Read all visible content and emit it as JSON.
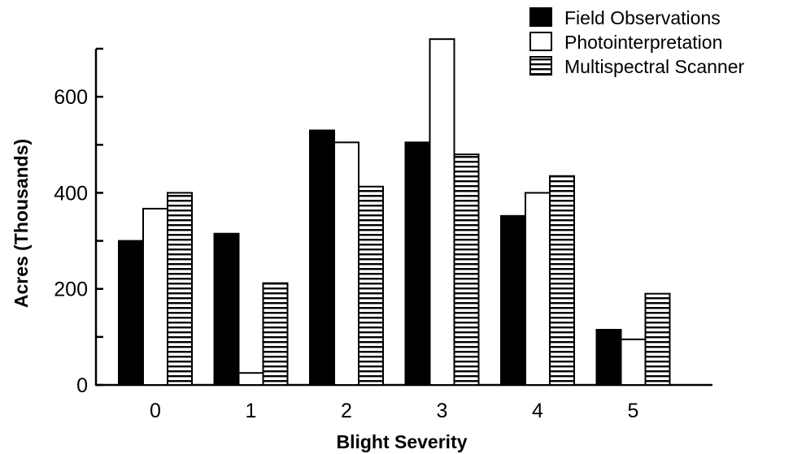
{
  "chart_data": {
    "type": "bar",
    "xlabel": "Blight Severity",
    "ylabel": "Acres (Thousands)",
    "categories": [
      "0",
      "1",
      "2",
      "3",
      "4",
      "5"
    ],
    "series": [
      {
        "name": "Field Observations",
        "values": [
          300,
          315,
          530,
          505,
          352,
          115
        ],
        "color": "#000000",
        "pattern": "solid"
      },
      {
        "name": "Photointerpretation",
        "values": [
          367,
          25,
          505,
          720,
          400,
          95
        ],
        "color": "#ffffff",
        "pattern": "open"
      },
      {
        "name": "Multispectral Scanner",
        "values": [
          400,
          212,
          413,
          480,
          435,
          190
        ],
        "color": "#ffffff",
        "pattern": "horizontal-lines"
      }
    ],
    "y_tick_labels": [
      "0",
      "200",
      "400",
      "600"
    ],
    "ylim": [
      0,
      700
    ],
    "grid": false,
    "legend_position": "top-right"
  }
}
